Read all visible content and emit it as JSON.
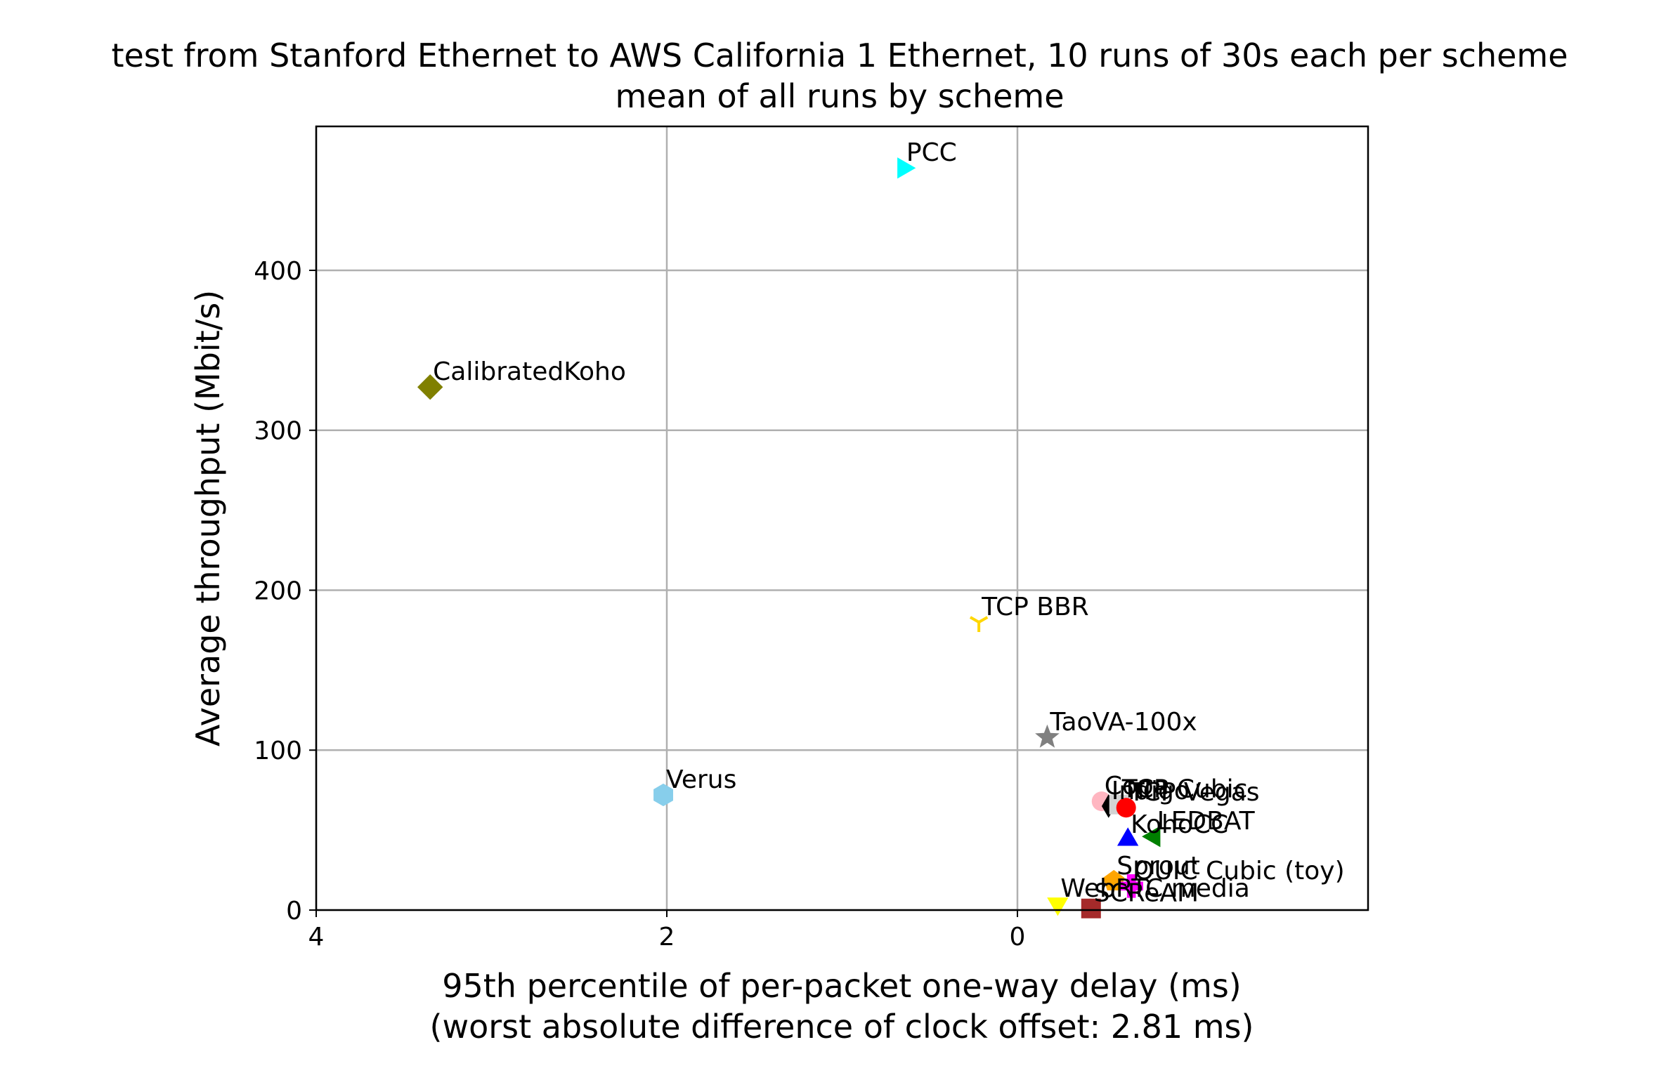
{
  "chart_data": {
    "type": "scatter",
    "title": "test from Stanford Ethernet to AWS California 1 Ethernet, 10 runs of 30s each per scheme",
    "subtitle": "mean of all runs by scheme",
    "xlabel": "95th percentile of per-packet one-way delay (ms)",
    "xlabel_note": "(worst absolute difference of clock offset: 2.81 ms)",
    "ylabel": "Average throughput (Mbit/s)",
    "x_inverted": true,
    "xlim": [
      4,
      -2
    ],
    "ylim": [
      0,
      490
    ],
    "x_ticks": [
      4,
      2,
      0
    ],
    "y_ticks": [
      0,
      100,
      200,
      300,
      400
    ],
    "grid": true,
    "points": [
      {
        "name": "PCC",
        "x": 0.65,
        "y": 464,
        "color": "#00ffff",
        "marker": "triangle-right"
      },
      {
        "name": "CalibratedKoho",
        "x": 3.35,
        "y": 327,
        "color": "#808000",
        "marker": "diamond"
      },
      {
        "name": "TCP BBR",
        "x": 0.22,
        "y": 180,
        "color": "#ffd700",
        "marker": "tri-down"
      },
      {
        "name": "TaoVA-100x",
        "x": -0.17,
        "y": 108,
        "color": "#808080",
        "marker": "star"
      },
      {
        "name": "Verus",
        "x": 2.02,
        "y": 72,
        "color": "#87ceeb",
        "marker": "hexagon"
      },
      {
        "name": "Copa",
        "x": -0.48,
        "y": 68,
        "color": "#ffb6c1",
        "marker": "circle"
      },
      {
        "name": "Indigo",
        "x": -0.52,
        "y": 65,
        "color": "#000000",
        "marker": "thin-diamond"
      },
      {
        "name": "TCP Cubic",
        "x": -0.58,
        "y": 66,
        "color": "#d3d3d3",
        "marker": "square"
      },
      {
        "name": "TCP Vegas",
        "x": -0.62,
        "y": 64,
        "color": "#ff0000",
        "marker": "circle"
      },
      {
        "name": "LEDBAT",
        "x": -0.78,
        "y": 46,
        "color": "#008000",
        "marker": "triangle-left"
      },
      {
        "name": "KohoCC",
        "x": -0.63,
        "y": 44,
        "color": "#0000ff",
        "marker": "triangle-up"
      },
      {
        "name": "Sprout",
        "x": -0.55,
        "y": 18,
        "color": "#ffa500",
        "marker": "pentagon"
      },
      {
        "name": "QUIC Cubic (toy)",
        "x": -0.65,
        "y": 15,
        "color": "#ff00ff",
        "marker": "plus-filled"
      },
      {
        "name": "WebRTC media",
        "x": -0.23,
        "y": 4,
        "color": "#ffff00",
        "marker": "triangle-down"
      },
      {
        "name": "SCReAM",
        "x": -0.42,
        "y": 1,
        "color": "#a52a2a",
        "marker": "square"
      }
    ]
  }
}
